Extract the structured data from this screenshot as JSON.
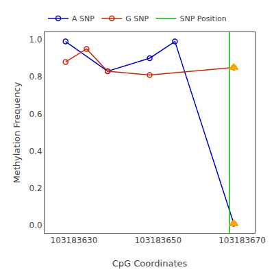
{
  "chart_data": {
    "type": "line",
    "xlabel": "CpG Coordinates",
    "ylabel": "Methylation Frequency",
    "series": [
      {
        "name": "A SNP",
        "color": "#0000CC",
        "marker": "circle-open",
        "x": [
          103183628,
          103183638,
          103183648,
          103183654,
          103183668
        ],
        "values": [
          0.99,
          0.83,
          0.9,
          0.99,
          0.01
        ]
      },
      {
        "name": "G SNP",
        "color": "#CC2200",
        "marker": "circle-open",
        "x": [
          103183628,
          103183633,
          103183638,
          103183648,
          103183668
        ],
        "values": [
          0.88,
          0.95,
          0.83,
          0.81,
          0.85
        ]
      },
      {
        "name": "SNP Position",
        "type": "vline",
        "color": "#00BB00",
        "x": 103183667
      },
      {
        "type": "scatter",
        "color": "#FFA500",
        "marker": "triangle-up",
        "x": [
          103183668
        ],
        "values": [
          0.01
        ]
      },
      {
        "type": "scatter",
        "color": "#FFA500",
        "marker": "triangle-up",
        "x": [
          103183668
        ],
        "values": [
          0.85
        ]
      }
    ],
    "xlim": [
      103183623,
      103183673
    ],
    "xticks": [
      103183630,
      103183650,
      103183670
    ],
    "ylim": [
      -0.04,
      1.04
    ],
    "yticks": [
      {
        "value": 0,
        "label": "0.0"
      },
      0.2,
      0.4,
      0.6,
      0.8,
      {
        "value": 1,
        "label": "1.0"
      }
    ],
    "grid": false,
    "legend": "top"
  }
}
